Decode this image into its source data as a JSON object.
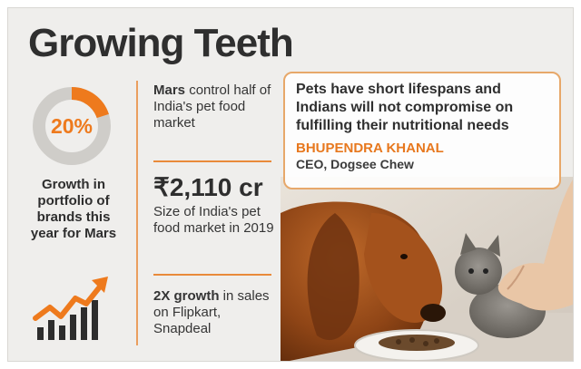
{
  "title": "Growing Teeth",
  "stat_ring": {
    "value": "20%",
    "fraction": 0.2
  },
  "growth_caption": "Growth in portfolio of brands this year for Mars",
  "facts": [
    {
      "strong": "Mars",
      "text": " control half of India's pet food market"
    },
    {
      "strong": "₹2,110 cr",
      "text": "Size of India's pet food market in 2019"
    },
    {
      "strong": "2X growth",
      "text": " in sales on Flipkart, Snapdeal"
    }
  ],
  "quote": {
    "text": "Pets have short lifespans and Indians will not compromise on fulfilling their nutritional needs",
    "name": "BHUPENDRA KHANAL",
    "role": "CEO, Dogsee Chew"
  },
  "colors": {
    "accent": "#ee7a1d",
    "background": "#efeeec",
    "ring_track": "#c9c7c3"
  },
  "icons": [
    "growth-chart-icon"
  ]
}
